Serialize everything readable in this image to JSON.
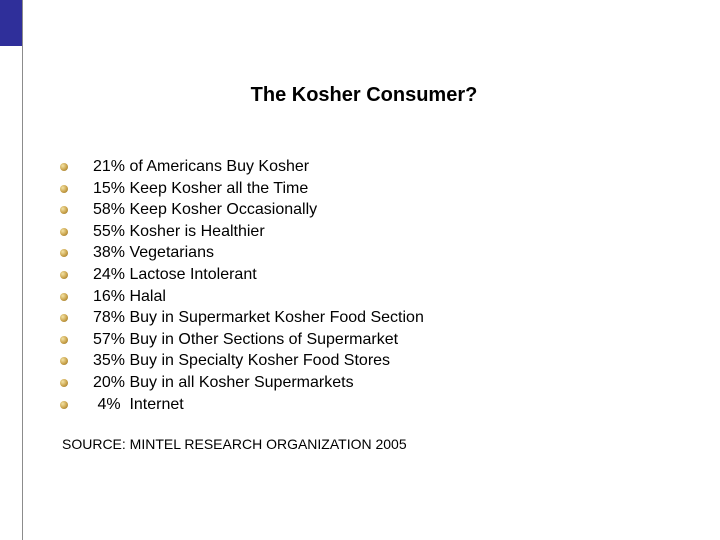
{
  "slide": {
    "title": "The Kosher Consumer?",
    "bullets": [
      "21% of Americans Buy Kosher",
      "15% Keep Kosher all the Time",
      "58% Keep Kosher Occasionally",
      "55% Kosher is Healthier",
      "38% Vegetarians",
      "24% Lactose Intolerant",
      "16% Halal",
      "78% Buy in Supermarket Kosher Food Section",
      "57% Buy in Other Sections of Supermarket",
      "35% Buy in Specialty Kosher Food Stores",
      "20% Buy in all Kosher Supermarkets",
      " 4%  Internet"
    ],
    "source": "SOURCE: MINTEL RESEARCH ORGANIZATION 2005",
    "colors": {
      "accent_block": "#2f2f9a",
      "bullet": "#c9a24a",
      "rule": "#8c8c8c"
    },
    "icons": {
      "bullet": "bullet-dot-icon"
    }
  }
}
